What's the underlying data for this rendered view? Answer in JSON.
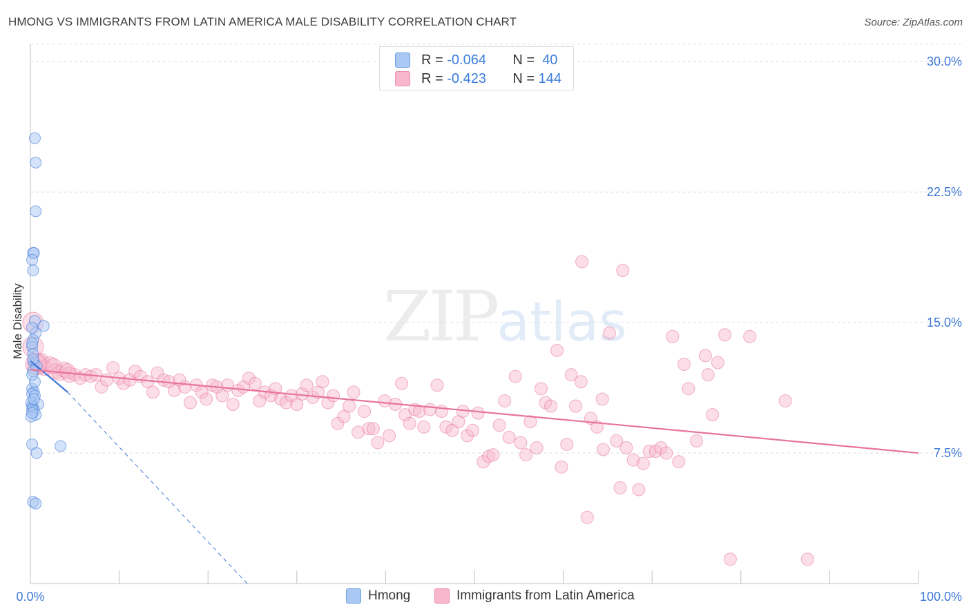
{
  "title": "HMONG VS IMMIGRANTS FROM LATIN AMERICA MALE DISABILITY CORRELATION CHART",
  "source": "Source: ZipAtlas.com",
  "watermark": {
    "zip": "ZIP",
    "atlas": "atlas"
  },
  "legend": {
    "rows": [
      {
        "r_label": "R =",
        "r_value": "-0.064",
        "n_label": "N =",
        "n_value": "40",
        "color": "#a9c8f3"
      },
      {
        "r_label": "R =",
        "r_value": "-0.423",
        "n_label": "N =",
        "n_value": "144",
        "color": "#f7b6cb"
      }
    ]
  },
  "bottom_legend": {
    "items": [
      {
        "label": "Hmong",
        "color": "#a9c8f3"
      },
      {
        "label": "Immigrants from Latin America",
        "color": "#f7b6cb"
      }
    ]
  },
  "chart_data": {
    "type": "scatter",
    "title": "HMONG VS IMMIGRANTS FROM LATIN AMERICA MALE DISABILITY CORRELATION CHART",
    "xlabel": "",
    "ylabel": "Male Disability",
    "xlim": [
      0,
      100
    ],
    "ylim": [
      0,
      31
    ],
    "x_tick_labels": [
      "0.0%",
      "100.0%"
    ],
    "y_ticks": [
      7.5,
      15.0,
      22.5,
      30.0
    ],
    "y_tick_labels": [
      "7.5%",
      "15.0%",
      "22.5%",
      "30.0%"
    ],
    "grid": true,
    "legend_position": "top-center",
    "colors": {
      "hmong": "#3d78d8",
      "hmong_fill": "#a9c8f3",
      "latin": "#e8739c",
      "latin_fill": "#f7b6cb",
      "tick_label": "#3d78d8"
    },
    "series": [
      {
        "name": "Hmong",
        "points": [
          [
            0.5,
            25.6
          ],
          [
            0.6,
            24.2
          ],
          [
            0.6,
            21.4
          ],
          [
            0.3,
            19.0
          ],
          [
            0.4,
            19.0
          ],
          [
            0.2,
            18.6
          ],
          [
            0.3,
            18.0
          ],
          [
            0.5,
            15.1
          ],
          [
            1.5,
            14.8
          ],
          [
            0.6,
            14.4
          ],
          [
            0.2,
            14.7
          ],
          [
            0.3,
            14.0
          ],
          [
            0.2,
            13.6
          ],
          [
            0.3,
            13.2
          ],
          [
            0.4,
            12.7
          ],
          [
            0.7,
            12.5
          ],
          [
            0.3,
            12.2
          ],
          [
            0.2,
            11.2
          ],
          [
            0.4,
            11.0
          ],
          [
            0.2,
            10.9
          ],
          [
            0.5,
            10.8
          ],
          [
            0.1,
            10.4
          ],
          [
            0.9,
            10.3
          ],
          [
            0.2,
            10.2
          ],
          [
            0.3,
            10.1
          ],
          [
            0.2,
            10.0
          ],
          [
            0.4,
            9.9
          ],
          [
            0.6,
            9.7
          ],
          [
            0.1,
            9.6
          ],
          [
            0.2,
            8.0
          ],
          [
            3.4,
            7.9
          ],
          [
            0.7,
            7.5
          ],
          [
            0.3,
            4.7
          ],
          [
            0.6,
            4.6
          ],
          [
            0.2,
            13.8
          ],
          [
            0.3,
            12.9
          ],
          [
            0.4,
            10.6
          ],
          [
            0.2,
            9.8
          ],
          [
            0.5,
            11.6
          ],
          [
            0.2,
            12.0
          ]
        ]
      },
      {
        "name": "Immigrants from Latin America",
        "points": [
          [
            0.3,
            15.0
          ],
          [
            0.3,
            13.6
          ],
          [
            0.8,
            12.6
          ],
          [
            1.2,
            12.8
          ],
          [
            1.6,
            12.4
          ],
          [
            2.2,
            12.6
          ],
          [
            2.8,
            12.2
          ],
          [
            3.3,
            12.1
          ],
          [
            3.8,
            12.3
          ],
          [
            4.4,
            12.0
          ],
          [
            5.0,
            12.0
          ],
          [
            5.6,
            11.8
          ],
          [
            6.2,
            12.0
          ],
          [
            6.8,
            11.9
          ],
          [
            7.4,
            12.0
          ],
          [
            8.0,
            11.3
          ],
          [
            8.6,
            11.7
          ],
          [
            9.3,
            12.4
          ],
          [
            10.0,
            11.8
          ],
          [
            10.5,
            11.5
          ],
          [
            11.2,
            11.7
          ],
          [
            11.8,
            12.2
          ],
          [
            12.4,
            11.9
          ],
          [
            13.2,
            11.6
          ],
          [
            13.8,
            11.0
          ],
          [
            14.3,
            12.1
          ],
          [
            15.0,
            11.7
          ],
          [
            15.6,
            11.6
          ],
          [
            16.2,
            11.1
          ],
          [
            16.8,
            11.7
          ],
          [
            17.4,
            11.3
          ],
          [
            18.0,
            10.4
          ],
          [
            18.7,
            11.4
          ],
          [
            19.3,
            11.0
          ],
          [
            19.8,
            10.6
          ],
          [
            20.5,
            11.4
          ],
          [
            21.0,
            11.3
          ],
          [
            21.6,
            10.8
          ],
          [
            22.2,
            11.4
          ],
          [
            22.8,
            10.3
          ],
          [
            23.4,
            11.1
          ],
          [
            24.0,
            11.3
          ],
          [
            24.6,
            11.8
          ],
          [
            25.3,
            11.5
          ],
          [
            25.8,
            10.5
          ],
          [
            26.4,
            11.0
          ],
          [
            27.1,
            10.8
          ],
          [
            27.6,
            11.2
          ],
          [
            28.2,
            10.6
          ],
          [
            28.8,
            10.4
          ],
          [
            29.4,
            10.8
          ],
          [
            30.0,
            10.3
          ],
          [
            30.6,
            10.9
          ],
          [
            31.1,
            11.4
          ],
          [
            31.8,
            10.7
          ],
          [
            32.4,
            11.0
          ],
          [
            32.9,
            11.6
          ],
          [
            33.5,
            10.4
          ],
          [
            34.1,
            10.8
          ],
          [
            34.6,
            9.2
          ],
          [
            35.3,
            9.6
          ],
          [
            35.9,
            10.2
          ],
          [
            36.4,
            11.0
          ],
          [
            36.9,
            8.7
          ],
          [
            37.6,
            9.9
          ],
          [
            38.1,
            8.9
          ],
          [
            38.6,
            8.9
          ],
          [
            39.1,
            8.1
          ],
          [
            39.9,
            10.5
          ],
          [
            40.4,
            8.5
          ],
          [
            41.1,
            10.3
          ],
          [
            41.8,
            11.5
          ],
          [
            42.2,
            9.7
          ],
          [
            42.7,
            9.2
          ],
          [
            43.3,
            10.0
          ],
          [
            43.8,
            9.9
          ],
          [
            44.3,
            9.0
          ],
          [
            45.0,
            10.0
          ],
          [
            45.8,
            11.4
          ],
          [
            46.3,
            9.9
          ],
          [
            46.8,
            9.0
          ],
          [
            47.5,
            8.8
          ],
          [
            48.2,
            9.3
          ],
          [
            48.7,
            9.9
          ],
          [
            49.2,
            8.5
          ],
          [
            49.8,
            8.8
          ],
          [
            50.4,
            9.8
          ],
          [
            51.0,
            7.0
          ],
          [
            51.6,
            7.3
          ],
          [
            52.1,
            7.4
          ],
          [
            52.8,
            9.1
          ],
          [
            53.4,
            10.5
          ],
          [
            53.9,
            8.4
          ],
          [
            54.6,
            11.9
          ],
          [
            55.2,
            8.1
          ],
          [
            55.8,
            7.4
          ],
          [
            56.3,
            9.3
          ],
          [
            57.0,
            7.8
          ],
          [
            57.5,
            11.2
          ],
          [
            58.0,
            10.4
          ],
          [
            58.6,
            10.2
          ],
          [
            59.3,
            13.4
          ],
          [
            59.8,
            6.7
          ],
          [
            60.4,
            8.0
          ],
          [
            60.9,
            12.0
          ],
          [
            61.4,
            10.2
          ],
          [
            62.0,
            11.6
          ],
          [
            62.7,
            3.8
          ],
          [
            63.1,
            9.5
          ],
          [
            63.8,
            9.0
          ],
          [
            64.4,
            10.6
          ],
          [
            64.5,
            7.7
          ],
          [
            65.2,
            14.4
          ],
          [
            66.0,
            8.2
          ],
          [
            66.4,
            5.5
          ],
          [
            67.1,
            7.8
          ],
          [
            67.9,
            7.1
          ],
          [
            68.5,
            5.4
          ],
          [
            69.0,
            6.9
          ],
          [
            69.7,
            7.6
          ],
          [
            70.4,
            7.6
          ],
          [
            71.0,
            7.8
          ],
          [
            71.6,
            7.5
          ],
          [
            72.3,
            14.2
          ],
          [
            73.0,
            7.0
          ],
          [
            73.6,
            12.6
          ],
          [
            74.1,
            11.2
          ],
          [
            75.0,
            8.2
          ],
          [
            76.0,
            13.1
          ],
          [
            76.3,
            12.0
          ],
          [
            76.8,
            9.7
          ],
          [
            77.4,
            12.7
          ],
          [
            78.2,
            14.3
          ],
          [
            78.8,
            1.4
          ],
          [
            81.0,
            14.2
          ],
          [
            87.5,
            1.4
          ],
          [
            85.0,
            10.5
          ],
          [
            62.1,
            18.5
          ],
          [
            66.7,
            18.0
          ],
          [
            0.6,
            12.6
          ],
          [
            2.6,
            12.5
          ],
          [
            4.2,
            12.2
          ]
        ]
      }
    ],
    "trend_lines": [
      {
        "series": "Hmong",
        "x": [
          0,
          4.2
        ],
        "y": [
          12.8,
          11.0
        ]
      },
      {
        "series": "Hmong",
        "style": "dashed",
        "x": [
          4.2,
          24.4
        ],
        "y": [
          11.0,
          0
        ]
      },
      {
        "series": "Immigrants from Latin America",
        "x": [
          0,
          100
        ],
        "y": [
          12.3,
          7.5
        ]
      }
    ]
  }
}
